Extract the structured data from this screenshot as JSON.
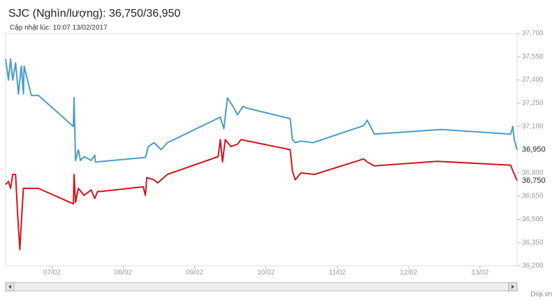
{
  "chart_data": {
    "type": "line",
    "title": "SJC (Nghìn/lượng): 36,750/36,950",
    "subtitle": "Cập nhật lúc: 10:07 13/02/2017",
    "source": "Doji.vn",
    "xlim": [
      6.35,
      13.52
    ],
    "xticks": [
      {
        "value": 7,
        "label": "07/02"
      },
      {
        "value": 8,
        "label": "08/02"
      },
      {
        "value": 9,
        "label": "09/02"
      },
      {
        "value": 10,
        "label": "10/02"
      },
      {
        "value": 11,
        "label": "11/02"
      },
      {
        "value": 12,
        "label": "12/02"
      },
      {
        "value": 13,
        "label": "13/02"
      }
    ],
    "ylim": [
      36200,
      37700
    ],
    "yticks": [
      {
        "value": 36200,
        "label": "36,200"
      },
      {
        "value": 36350,
        "label": "36,350"
      },
      {
        "value": 36500,
        "label": "36,500"
      },
      {
        "value": 36650,
        "label": "36,650"
      },
      {
        "value": 36800,
        "label": "36,800"
      },
      {
        "value": 36950,
        "label": "36,950"
      },
      {
        "value": 37100,
        "label": "37,100"
      },
      {
        "value": 37250,
        "label": "37,250"
      },
      {
        "value": 37400,
        "label": "37,400"
      },
      {
        "value": 37550,
        "label": "37,550"
      },
      {
        "value": 37700,
        "label": "37,700"
      }
    ],
    "grid": false,
    "series": [
      {
        "color": "#4a9cc4",
        "end_label": "36,950",
        "x": [
          6.35,
          6.39,
          6.42,
          6.45,
          6.49,
          6.53,
          6.57,
          6.6,
          6.61,
          6.71,
          6.81,
          7.3,
          7.31,
          7.33,
          7.37,
          7.4,
          7.45,
          7.55,
          7.6,
          7.61,
          8.31,
          8.35,
          8.43,
          8.53,
          8.62,
          9.36,
          9.41,
          9.46,
          9.55,
          9.6,
          9.68,
          9.72,
          10.34,
          10.37,
          10.41,
          10.49,
          10.66,
          11.37,
          11.42,
          11.52,
          12.45,
          13.43,
          13.46,
          13.48,
          13.52
        ],
        "values": [
          37535,
          37400,
          37535,
          37400,
          37510,
          37310,
          37490,
          37310,
          37490,
          37300,
          37300,
          37100,
          37285,
          36880,
          36950,
          36880,
          36905,
          36880,
          36915,
          36870,
          36900,
          36970,
          36995,
          36950,
          36995,
          37160,
          37085,
          37285,
          37220,
          37175,
          37230,
          37220,
          37150,
          37015,
          36995,
          37005,
          36995,
          37105,
          37140,
          37050,
          37080,
          37050,
          37100,
          37015,
          36950
        ]
      },
      {
        "color": "#d0141a",
        "end_label": "36,750",
        "x": [
          6.35,
          6.39,
          6.42,
          6.45,
          6.49,
          6.52,
          6.55,
          6.57,
          6.6,
          6.81,
          7.3,
          7.31,
          7.33,
          7.37,
          7.45,
          7.55,
          7.6,
          7.64,
          7.69,
          8.28,
          8.31,
          8.33,
          8.43,
          8.48,
          8.62,
          9.33,
          9.36,
          9.39,
          9.43,
          9.51,
          9.6,
          9.65,
          10.34,
          10.37,
          10.41,
          10.49,
          10.68,
          11.37,
          11.42,
          11.52,
          12.4,
          13.43,
          13.46,
          13.52
        ],
        "values": [
          36725,
          36745,
          36700,
          36790,
          36790,
          36520,
          36305,
          36475,
          36700,
          36700,
          36600,
          36790,
          36610,
          36700,
          36655,
          36690,
          36635,
          36680,
          36680,
          36710,
          36655,
          36770,
          36755,
          36735,
          36790,
          36905,
          37015,
          36870,
          37015,
          36970,
          36985,
          37015,
          36950,
          36815,
          36755,
          36800,
          36790,
          36890,
          36870,
          36845,
          36875,
          36850,
          36815,
          36750
        ]
      }
    ]
  }
}
